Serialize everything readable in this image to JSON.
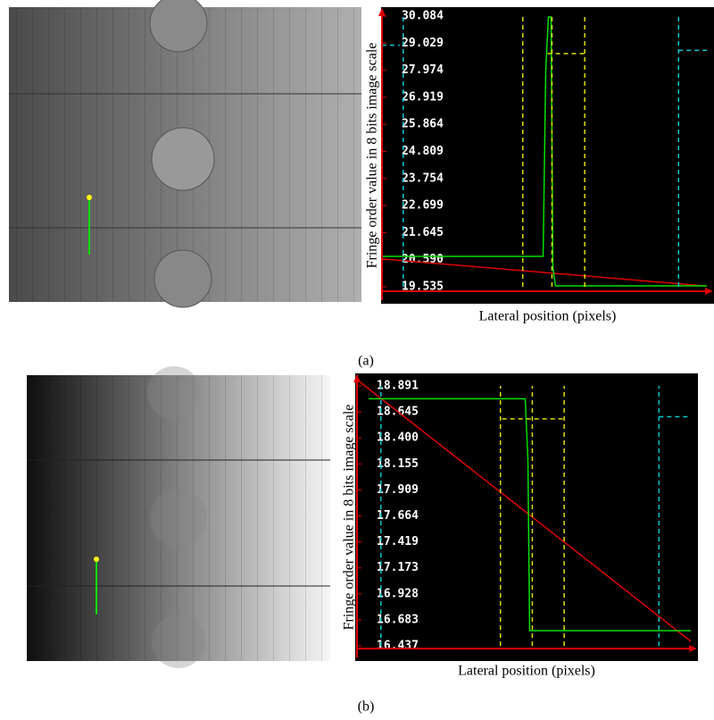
{
  "chart_data": [
    {
      "type": "line",
      "panel_label": "(a)",
      "xlabel": "Lateral position (pixels)",
      "ylabel": "Fringe order value in 8 bits image scale",
      "xlim": [
        0,
        370
      ],
      "ylim": [
        19.535,
        30.084
      ],
      "yticks": [
        19.535,
        {
          "value": 20.59,
          "label": "20.590"
        },
        21.645,
        22.699,
        23.754,
        24.809,
        25.864,
        26.919,
        27.974,
        29.029,
        30.084
      ],
      "series": [
        {
          "color": "#e00000",
          "dash": false,
          "x": [
            0,
            367
          ],
          "values": [
            20.62,
            19.56
          ]
        },
        {
          "color": "#00e000",
          "dash": false,
          "x": [
            0,
            182,
            185,
            188,
            191,
            193,
            196,
            367
          ],
          "values": [
            20.72,
            20.72,
            28.0,
            30.05,
            30.05,
            20.3,
            19.57,
            19.57
          ]
        },
        {
          "color": "#e0e000",
          "dash": true,
          "x": [
            159,
            159,
            null,
            187,
            229,
            null,
            229,
            229,
            null,
            192,
            192
          ],
          "values": [
            19.535,
            30.084,
            null,
            28.62,
            28.62,
            null,
            19.535,
            30.084,
            null,
            19.535,
            30.084
          ]
        },
        {
          "color": "#00c8d0",
          "dash": true,
          "x": [
            335,
            335,
            null,
            335,
            367,
            null,
            0,
            20,
            null,
            24,
            24
          ],
          "values": [
            19.535,
            30.084,
            null,
            28.75,
            28.75,
            null,
            28.95,
            28.95,
            null,
            19.535,
            30.084
          ]
        }
      ]
    },
    {
      "type": "line",
      "panel_label": "(b)",
      "xlabel": "Lateral position (pixels)",
      "ylabel": "Fringe order value in 8 bits image scale",
      "xlim": [
        0,
        380
      ],
      "ylim": [
        16.437,
        18.891
      ],
      "yticks": [
        16.437,
        16.683,
        16.928,
        17.173,
        17.419,
        17.664,
        17.909,
        18.155,
        {
          "value": 18.4,
          "label": "18.400"
        },
        18.645,
        18.891
      ],
      "series": [
        {
          "color": "#e00000",
          "dash": false,
          "x": [
            0,
            377
          ],
          "values": [
            18.95,
            16.48
          ]
        },
        {
          "color": "#00e000",
          "dash": false,
          "x": [
            13,
            190,
            193,
            195,
            377
          ],
          "values": [
            18.77,
            18.77,
            18.2,
            16.58,
            16.58
          ]
        },
        {
          "color": "#e0e000",
          "dash": true,
          "x": [
            162,
            162,
            null,
            198,
            198,
            null,
            234,
            234,
            null,
            164,
            234
          ],
          "values": [
            16.437,
            18.891,
            null,
            16.437,
            18.891,
            null,
            16.437,
            18.891,
            null,
            18.58,
            18.58
          ]
        },
        {
          "color": "#00c8d0",
          "dash": true,
          "x": [
            341,
            341,
            null,
            341,
            377,
            null,
            27,
            27
          ],
          "values": [
            16.437,
            18.891,
            null,
            18.6,
            18.6,
            null,
            16.437,
            18.891
          ]
        }
      ]
    }
  ]
}
